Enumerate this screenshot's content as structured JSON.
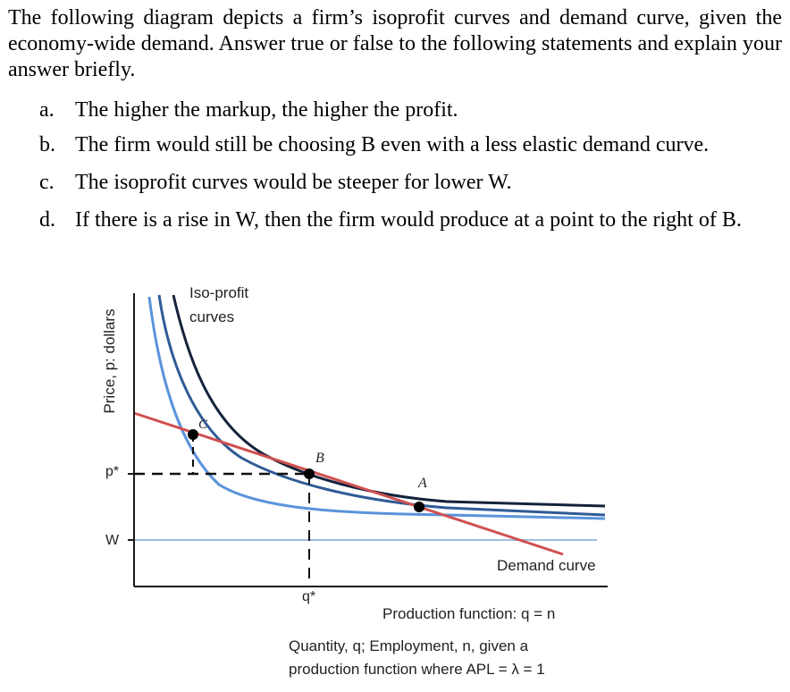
{
  "question": {
    "intro": "The following diagram depicts a firm’s isoprofit curves and demand curve, given the economy-wide demand. Answer true or false to the following statements and explain your answer briefly.",
    "items": [
      {
        "label": "a.",
        "text": "The higher the markup, the higher the profit."
      },
      {
        "label": "b.",
        "text": "The firm would still be choosing B even with a less elastic demand curve."
      },
      {
        "label": "c.",
        "text": "The isoprofit curves would be steeper for lower W."
      },
      {
        "label": "d.",
        "text": "If there is a rise in W, then the firm would produce at a point to the right of B."
      }
    ]
  },
  "diagram": {
    "y_axis_label": "Price, p: dollars",
    "p_star_label": "p*",
    "w_label": "W",
    "q_star_label": "q*",
    "iso_profit_label_line1": "Iso-profit",
    "iso_profit_label_line2": "curves",
    "demand_curve_label": "Demand curve",
    "production_function_label": "Production function: q = n",
    "x_axis_label_line1": "Quantity, q; Employment, n, given a",
    "x_axis_label_line2": "production function where APL = λ = 1",
    "point_a": "A",
    "point_b": "B",
    "point_c": "C",
    "colors": {
      "axis": "#1a1a1a",
      "demand": "#d05050",
      "isoprofit_dark": "#14233c",
      "isoprofit_mid": "#2f5b96",
      "isoprofit_light": "#5b93db",
      "wage_line": "#9dbce3",
      "dashed": "#111111"
    }
  }
}
